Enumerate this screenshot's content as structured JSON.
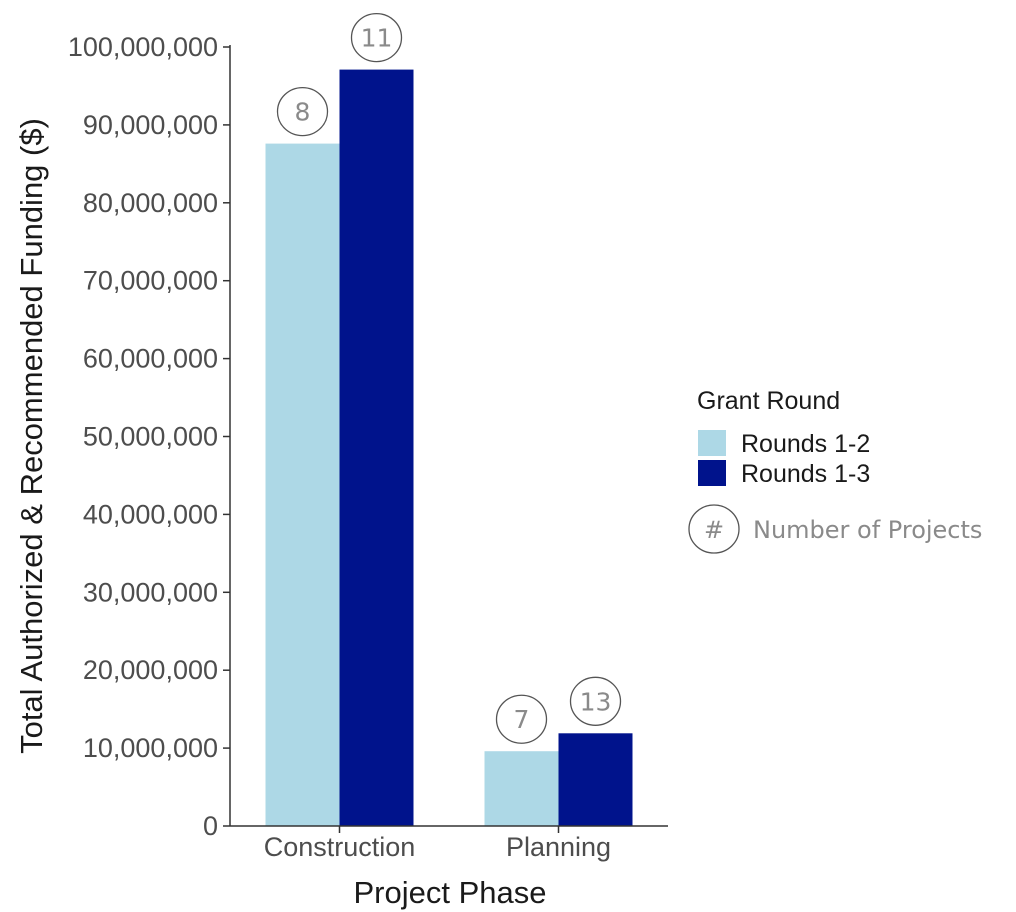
{
  "chart_data": {
    "type": "bar",
    "xlabel": "Project Phase",
    "ylabel": "Total Authorized & Recommended Funding ($)",
    "categories": [
      "Construction",
      "Planning"
    ],
    "series": [
      {
        "name": "Rounds 1-2",
        "color": "#add8e6",
        "values": [
          87600000,
          9600000
        ],
        "counts": [
          8,
          7
        ]
      },
      {
        "name": "Rounds 1-3",
        "color": "#00138c",
        "values": [
          97100000,
          11900000
        ],
        "counts": [
          11,
          13
        ]
      }
    ],
    "ylim": [
      0,
      100000000
    ],
    "yticks": [
      0,
      10000000,
      20000000,
      30000000,
      40000000,
      50000000,
      60000000,
      70000000,
      80000000,
      90000000,
      100000000
    ],
    "ytick_labels": [
      "0",
      "10,000,000",
      "20,000,000",
      "30,000,000",
      "40,000,000",
      "50,000,000",
      "60,000,000",
      "70,000,000",
      "80,000,000",
      "90,000,000",
      "100,000,000"
    ],
    "grid": false,
    "legend": {
      "title": "Grant Round",
      "placement": "right",
      "note_symbol": "#",
      "note_label": "Number of Projects"
    }
  }
}
